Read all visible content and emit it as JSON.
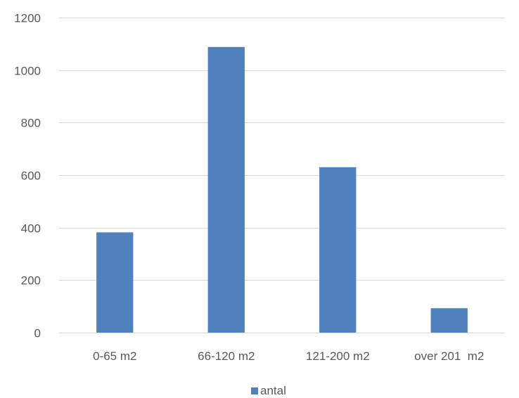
{
  "chart_data": {
    "type": "bar",
    "categories": [
      "0-65 m2",
      "66-120 m2",
      "121-200 m2",
      "over 201  m2"
    ],
    "series": [
      {
        "name": "antal",
        "values": [
          382,
          1088,
          630,
          93
        ],
        "color": "#4f81bd"
      }
    ],
    "ylim": [
      0,
      1200
    ],
    "yticks": [
      0,
      200,
      400,
      600,
      800,
      1000,
      1200
    ],
    "grid": true,
    "gridline_color": "#d9d9d9",
    "text_color": "#595959",
    "legend": {
      "position": "bottom",
      "entries": [
        "antal"
      ]
    },
    "title": "",
    "xlabel": "",
    "ylabel": ""
  }
}
